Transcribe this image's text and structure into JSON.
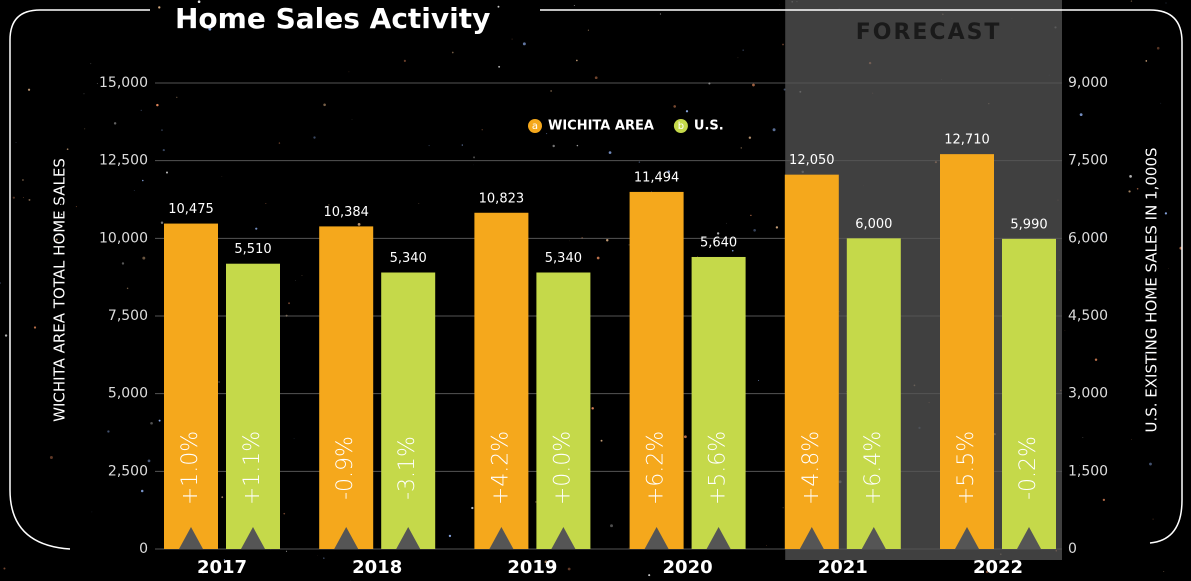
{
  "chart_data": {
    "type": "bar",
    "title": "Home Sales Activity",
    "categories": [
      "2017",
      "2018",
      "2019",
      "2020",
      "2021",
      "2022"
    ],
    "forecast": {
      "label": "FORECAST",
      "from": "2021"
    },
    "ylabel": "WICHITA AREA TOTAL HOME SALES",
    "y2label": "U.S. EXISTING HOME SALES IN 1,000S",
    "ylim": [
      0,
      15000
    ],
    "yticks": [
      0,
      {
        "value": 2500,
        "label": "2,500"
      },
      {
        "value": 5000,
        "label": "5,000"
      },
      {
        "value": 7500,
        "label": "7,500"
      },
      {
        "value": 10000,
        "label": "10,000"
      },
      {
        "value": 12500,
        "label": "12,500"
      },
      {
        "value": 15000,
        "label": "15,000"
      }
    ],
    "y2lim": [
      0,
      9000
    ],
    "y2ticks": [
      0,
      {
        "value": 1500,
        "label": "1,500"
      },
      {
        "value": 3000,
        "label": "3,000"
      },
      {
        "value": 4500,
        "label": "4,500"
      },
      {
        "value": 6000,
        "label": "6,000"
      },
      {
        "value": 7500,
        "label": "7,500"
      },
      {
        "value": 9000,
        "label": "9,000"
      }
    ],
    "grid": true,
    "series": [
      {
        "name": "WICHITA AREA",
        "badge": "a",
        "color": "#f5a81c",
        "axis": "y",
        "values": [
          10475,
          10384,
          10823,
          11494,
          12050,
          12710
        ],
        "value_labels": [
          "10,475",
          "10,384",
          "10,823",
          "11,494",
          "12,050",
          "12,710"
        ],
        "change_labels": [
          "+1.0%",
          "-0.9%",
          "+4.2%",
          "+6.2%",
          "+4.8%",
          "+5.5%"
        ]
      },
      {
        "name": "U.S.",
        "badge": "b",
        "color": "#c5d94a",
        "axis": "y2",
        "values": [
          5510,
          5340,
          5340,
          5640,
          6000,
          5990
        ],
        "value_labels": [
          "5,510",
          "5,340",
          "5,340",
          "5,640",
          "6,000",
          "5,990"
        ],
        "change_labels": [
          "+1.1%",
          "-3.1%",
          "+0.0%",
          "+5.6%",
          "+6.4%",
          "-0.2%"
        ]
      }
    ]
  }
}
